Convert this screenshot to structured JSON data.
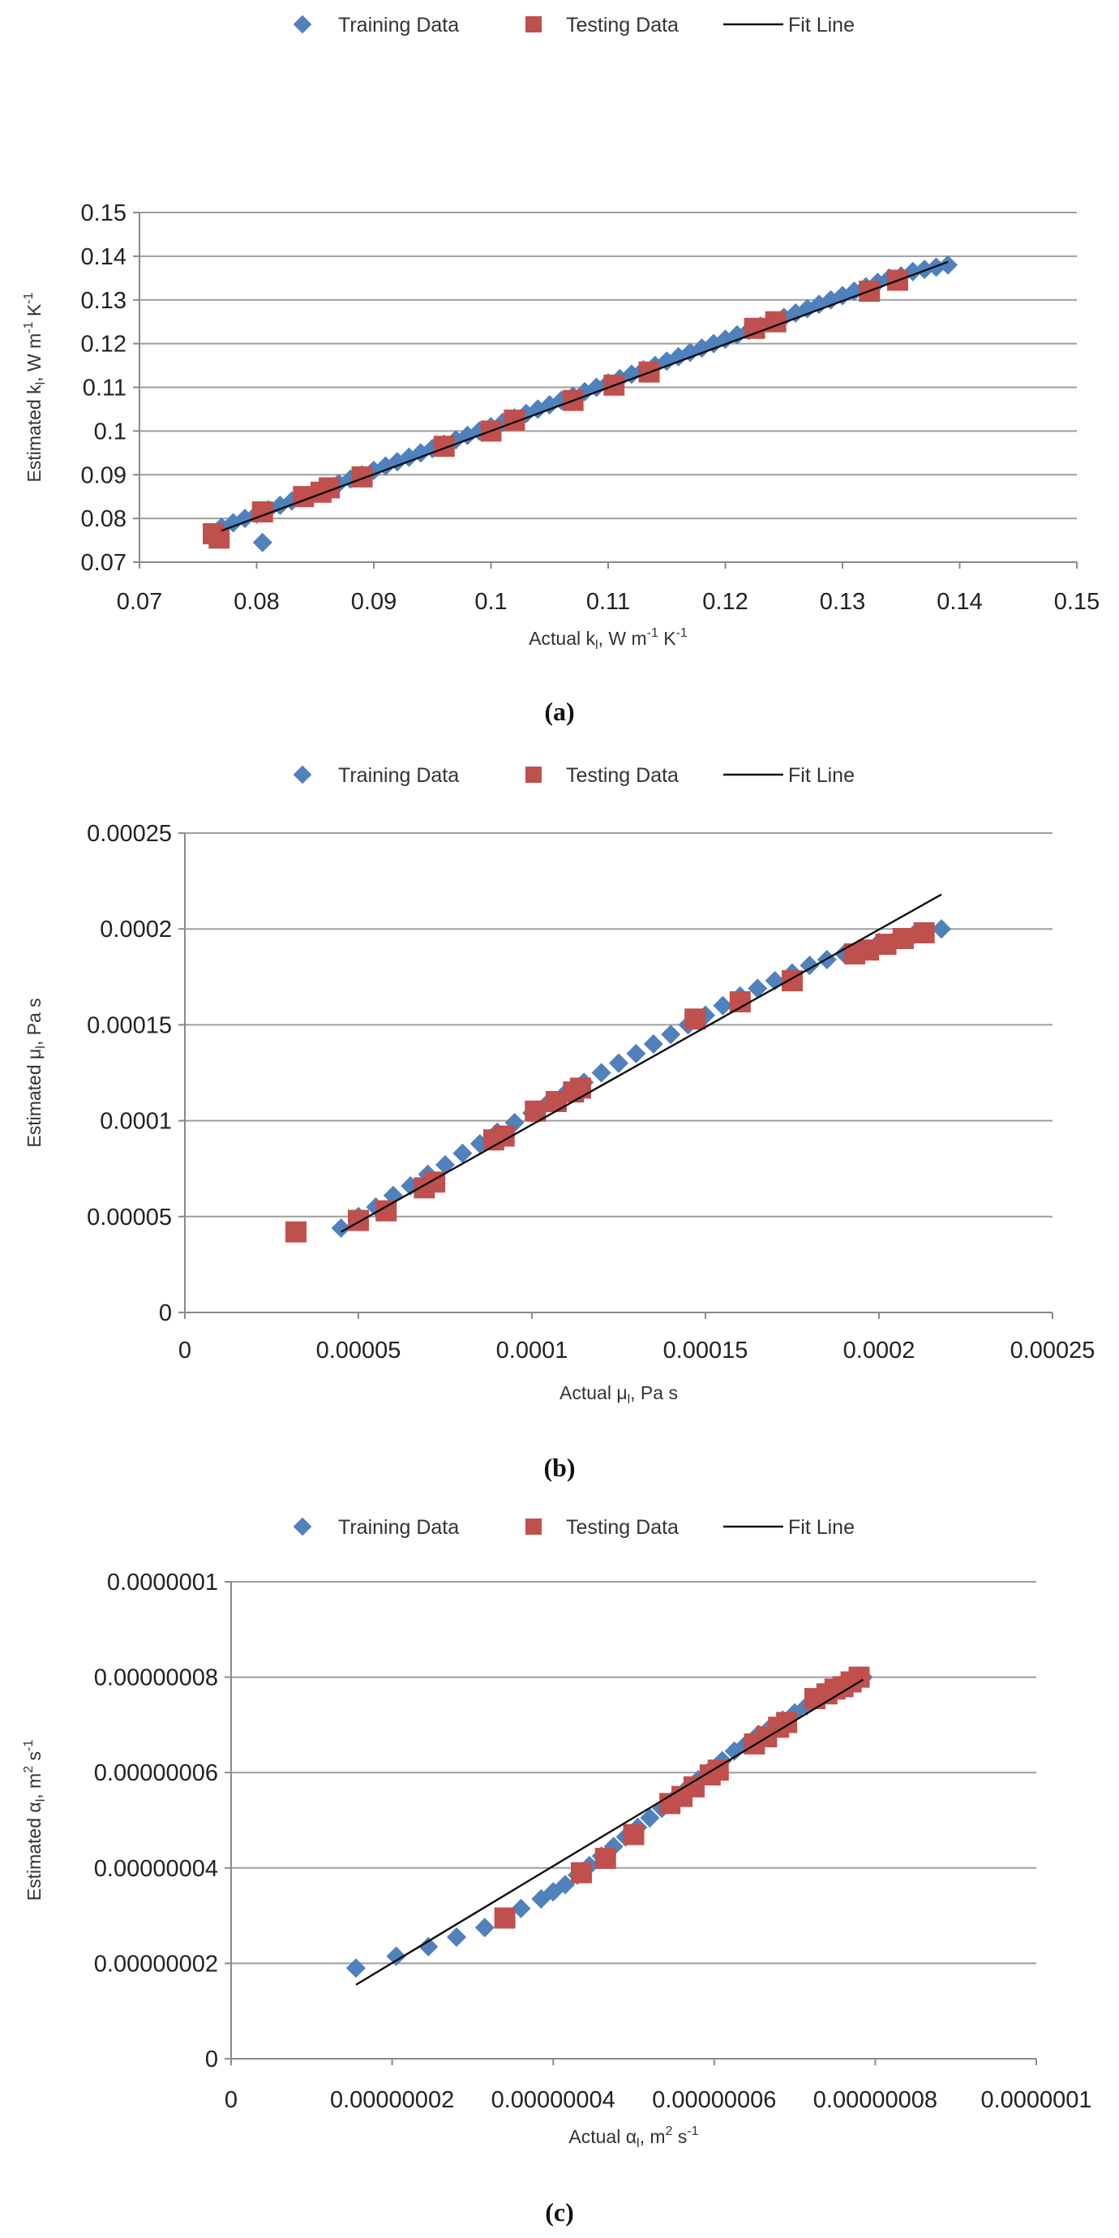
{
  "colors": {
    "training": "#4F81BD",
    "testing": "#C0504D",
    "fit": "#111111",
    "grid": "#9e9e9e"
  },
  "chart_data": [
    {
      "type": "scatter",
      "panel": "(a)",
      "legend": {
        "position": "top",
        "entries": [
          "Training Data",
          "Testing Data",
          "Fit Line"
        ]
      },
      "xlabel": {
        "base": "Actual k",
        "sub": "l",
        "tail": ", W m",
        "sup1": "-1",
        "mid": " K",
        "sup2": "-1"
      },
      "ylabel": {
        "base": "Estimated k",
        "sub": "l",
        "tail": ", W m",
        "sup1": "-1",
        "mid": " K",
        "sup2": "-1"
      },
      "xlim": [
        0.07,
        0.15
      ],
      "ylim": [
        0.07,
        0.15
      ],
      "xticks": [
        "0.07",
        "0.08",
        "0.09",
        "0.1",
        "0.11",
        "0.12",
        "0.13",
        "0.14",
        "0.15"
      ],
      "yticks": [
        "0.07",
        "0.08",
        "0.09",
        "0.1",
        "0.11",
        "0.12",
        "0.13",
        "0.14",
        "0.15"
      ],
      "grid": "horizontal",
      "series": [
        {
          "name": "Training Data",
          "marker": "diamond",
          "x": [
            0.0805,
            0.077,
            0.078,
            0.079,
            0.08,
            0.081,
            0.082,
            0.083,
            0.084,
            0.085,
            0.086,
            0.087,
            0.088,
            0.089,
            0.09,
            0.091,
            0.092,
            0.093,
            0.094,
            0.095,
            0.096,
            0.097,
            0.098,
            0.099,
            0.1,
            0.101,
            0.102,
            0.103,
            0.104,
            0.105,
            0.106,
            0.107,
            0.108,
            0.109,
            0.11,
            0.111,
            0.112,
            0.113,
            0.114,
            0.115,
            0.116,
            0.117,
            0.118,
            0.119,
            0.12,
            0.121,
            0.122,
            0.123,
            0.124,
            0.125,
            0.126,
            0.127,
            0.128,
            0.129,
            0.13,
            0.131,
            0.132,
            0.133,
            0.134,
            0.135,
            0.136,
            0.137,
            0.138,
            0.139
          ],
          "y": [
            0.0745,
            0.078,
            0.079,
            0.08,
            0.081,
            0.082,
            0.083,
            0.084,
            0.085,
            0.086,
            0.087,
            0.088,
            0.089,
            0.09,
            0.091,
            0.092,
            0.093,
            0.094,
            0.095,
            0.096,
            0.097,
            0.098,
            0.099,
            0.1,
            0.101,
            0.102,
            0.103,
            0.104,
            0.105,
            0.106,
            0.107,
            0.108,
            0.109,
            0.11,
            0.111,
            0.112,
            0.113,
            0.114,
            0.115,
            0.116,
            0.117,
            0.118,
            0.119,
            0.12,
            0.121,
            0.122,
            0.123,
            0.124,
            0.125,
            0.126,
            0.127,
            0.128,
            0.129,
            0.13,
            0.131,
            0.132,
            0.133,
            0.134,
            0.135,
            0.1355,
            0.1365,
            0.137,
            0.1375,
            0.138
          ]
        },
        {
          "name": "Testing Data",
          "marker": "square",
          "x": [
            0.0763,
            0.0768,
            0.0805,
            0.084,
            0.0855,
            0.0862,
            0.089,
            0.096,
            0.1,
            0.102,
            0.107,
            0.1105,
            0.1135,
            0.1225,
            0.1243,
            0.1323,
            0.1347
          ],
          "y": [
            0.0765,
            0.0755,
            0.0815,
            0.085,
            0.086,
            0.087,
            0.0895,
            0.0965,
            0.1,
            0.1025,
            0.107,
            0.1105,
            0.1135,
            0.1235,
            0.125,
            0.132,
            0.1345
          ]
        },
        {
          "name": "Fit Line",
          "type": "line",
          "x": [
            0.077,
            0.139
          ],
          "y": [
            0.0772,
            0.1387
          ]
        }
      ]
    },
    {
      "type": "scatter",
      "panel": "(b)",
      "legend": {
        "position": "top",
        "entries": [
          "Training Data",
          "Testing Data",
          "Fit Line"
        ]
      },
      "xlabel": {
        "base": "Actual μ",
        "sub": "l",
        "tail": ", Pa s"
      },
      "ylabel": {
        "base": "Estimated μ",
        "sub": "l",
        "tail": ", Pa s"
      },
      "xlim": [
        0,
        0.00025
      ],
      "ylim": [
        0,
        0.00025
      ],
      "xticks": [
        "0",
        "0.00005",
        "0.0001",
        "0.00015",
        "0.0002",
        "0.00025"
      ],
      "yticks": [
        "0",
        "0.00005",
        "0.0001",
        "0.00015",
        "0.0002",
        "0.00025"
      ],
      "grid": "horizontal",
      "series": [
        {
          "name": "Training Data",
          "marker": "diamond",
          "x": [
            4.5e-05,
            5e-05,
            5.5e-05,
            6e-05,
            6.5e-05,
            7e-05,
            7.5e-05,
            8e-05,
            8.5e-05,
            9e-05,
            9.5e-05,
            0.0001,
            0.000105,
            0.00011,
            0.000115,
            0.00012,
            0.000125,
            0.00013,
            0.000135,
            0.00014,
            0.000145,
            0.00015,
            0.000155,
            0.00016,
            0.000165,
            0.00017,
            0.000175,
            0.00018,
            0.000185,
            0.00019,
            0.000195,
            0.0002,
            0.000205,
            0.00021,
            0.000218
          ],
          "y": [
            4.4e-05,
            5e-05,
            5.5e-05,
            6.1e-05,
            6.6e-05,
            7.2e-05,
            7.7e-05,
            8.3e-05,
            8.8e-05,
            9.4e-05,
            9.9e-05,
            0.000104,
            0.00011,
            0.000115,
            0.00012,
            0.000125,
            0.00013,
            0.000135,
            0.00014,
            0.000145,
            0.00015,
            0.000155,
            0.00016,
            0.000165,
            0.000169,
            0.000173,
            0.000177,
            0.000181,
            0.000184,
            0.000187,
            0.00019,
            0.000193,
            0.000195,
            0.000197,
            0.0002
          ]
        },
        {
          "name": "Testing Data",
          "marker": "square",
          "x": [
            3.2e-05,
            5e-05,
            5.8e-05,
            6.9e-05,
            7.2e-05,
            8.9e-05,
            9.2e-05,
            0.000101,
            0.000107,
            0.000112,
            0.000114,
            0.000147,
            0.00016,
            0.000175,
            0.000193,
            0.000197,
            0.000202,
            0.000207,
            0.000213
          ],
          "y": [
            4.2e-05,
            4.8e-05,
            5.3e-05,
            6.5e-05,
            6.8e-05,
            9e-05,
            9.2e-05,
            0.000105,
            0.00011,
            0.000115,
            0.000117,
            0.000153,
            0.000162,
            0.000173,
            0.000187,
            0.000189,
            0.000192,
            0.000195,
            0.000198
          ]
        },
        {
          "name": "Fit Line",
          "type": "line",
          "x": [
            4.5e-05,
            0.000218
          ],
          "y": [
            4.2e-05,
            0.000218
          ]
        }
      ]
    },
    {
      "type": "scatter",
      "panel": "(c)",
      "legend": {
        "position": "top",
        "entries": [
          "Training Data",
          "Testing Data",
          "Fit Line"
        ]
      },
      "xlabel": {
        "base": "Actual α",
        "sub": "l",
        "tail": ", m",
        "sup1": "2",
        "mid": " s",
        "sup2": "-1"
      },
      "ylabel": {
        "base": "Estimated α",
        "sub": "l",
        "tail": ", m",
        "sup1": "2",
        "mid": " s",
        "sup2": "-1"
      },
      "xlim": [
        0,
        1e-07
      ],
      "ylim": [
        0,
        1e-07
      ],
      "xticks": [
        "0",
        "0.00000002",
        "0.00000004",
        "0.00000006",
        "0.00000008",
        "0.0000001"
      ],
      "yticks": [
        "0",
        "0.00000002",
        "0.00000004",
        "0.00000006",
        "0.00000008",
        "0.0000001"
      ],
      "grid": "horizontal",
      "series": [
        {
          "name": "Training Data",
          "marker": "diamond",
          "x": [
            1.55e-08,
            2.05e-08,
            2.45e-08,
            2.8e-08,
            3.15e-08,
            3.6e-08,
            3.85e-08,
            4e-08,
            4.15e-08,
            4.3e-08,
            4.45e-08,
            4.6e-08,
            4.75e-08,
            4.9e-08,
            5.05e-08,
            5.2e-08,
            5.35e-08,
            5.5e-08,
            5.65e-08,
            5.8e-08,
            5.95e-08,
            6.1e-08,
            6.25e-08,
            6.4e-08,
            6.55e-08,
            6.7e-08,
            6.85e-08,
            7e-08,
            7.15e-08,
            7.3e-08,
            7.45e-08,
            7.6e-08,
            7.75e-08,
            7.85e-08
          ],
          "y": [
            1.9e-08,
            2.15e-08,
            2.35e-08,
            2.55e-08,
            2.75e-08,
            3.15e-08,
            3.35e-08,
            3.5e-08,
            3.65e-08,
            3.85e-08,
            4.05e-08,
            4.25e-08,
            4.45e-08,
            4.65e-08,
            4.85e-08,
            5.05e-08,
            5.25e-08,
            5.45e-08,
            5.65e-08,
            5.85e-08,
            6.05e-08,
            6.25e-08,
            6.45e-08,
            6.6e-08,
            6.8e-08,
            6.95e-08,
            7.1e-08,
            7.25e-08,
            7.4e-08,
            7.55e-08,
            7.7e-08,
            7.85e-08,
            7.95e-08,
            8e-08
          ]
        },
        {
          "name": "Testing Data",
          "marker": "square",
          "x": [
            3.4e-08,
            4.35e-08,
            4.65e-08,
            5e-08,
            5.45e-08,
            5.6e-08,
            5.75e-08,
            5.95e-08,
            6.05e-08,
            6.5e-08,
            6.65e-08,
            6.8e-08,
            6.9e-08,
            7.25e-08,
            7.4e-08,
            7.5e-08,
            7.6e-08,
            7.7e-08,
            7.8e-08
          ],
          "y": [
            2.95e-08,
            3.9e-08,
            4.2e-08,
            4.7e-08,
            5.35e-08,
            5.5e-08,
            5.7e-08,
            5.95e-08,
            6.05e-08,
            6.6e-08,
            6.75e-08,
            6.95e-08,
            7.05e-08,
            7.55e-08,
            7.65e-08,
            7.75e-08,
            7.8e-08,
            7.9e-08,
            8e-08
          ]
        },
        {
          "name": "Fit Line",
          "type": "line",
          "x": [
            1.55e-08,
            7.85e-08
          ],
          "y": [
            1.55e-08,
            7.95e-08
          ]
        }
      ]
    }
  ]
}
